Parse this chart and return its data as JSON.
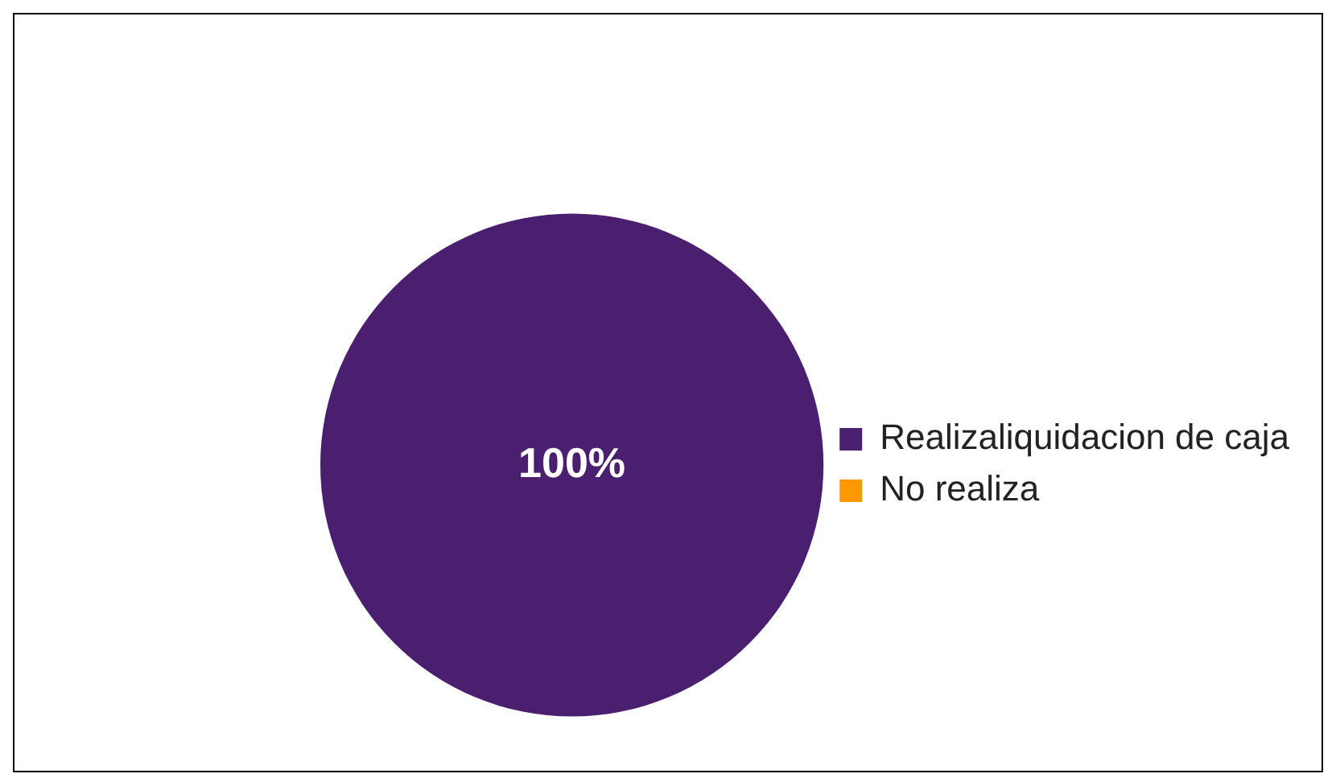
{
  "chart_data": {
    "type": "pie",
    "categories": [
      "Realizaliquidacion de caja",
      "No realiza"
    ],
    "values": [
      100,
      0
    ],
    "colors": [
      "#4b1f6f",
      "#ff9900"
    ],
    "value_labels": [
      "100%",
      null
    ],
    "legend": "right"
  }
}
